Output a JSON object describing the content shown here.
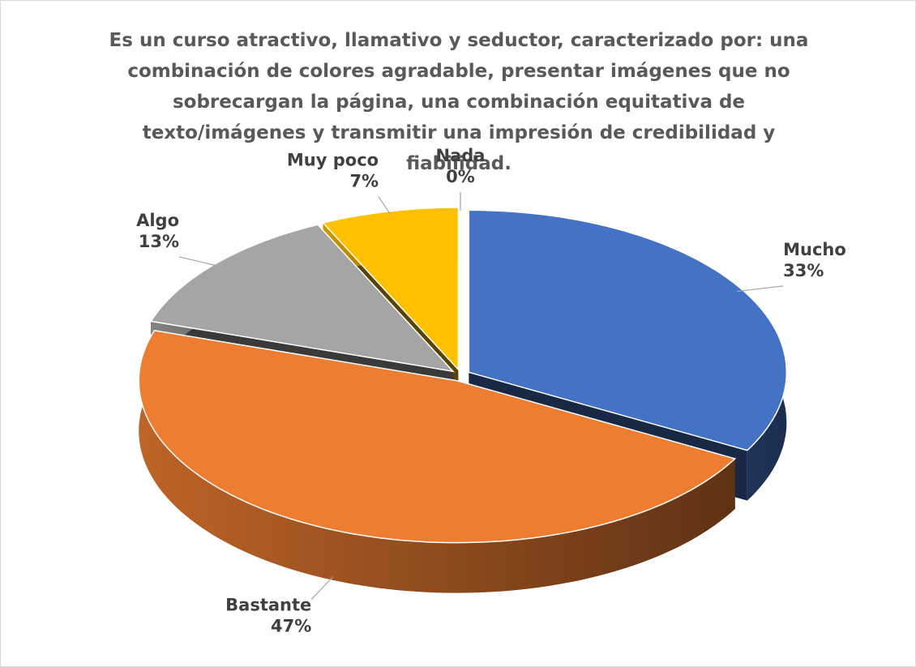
{
  "chart_data": {
    "type": "pie3d",
    "title": "Es un curso atractivo, llamativo y seductor, caracterizado por: una combinación de colores agradable, presentar imágenes que no sobrecargan la página, una combinación equitativa de texto/imágenes y transmitir una impresión de credibilidad y fiabilidad.",
    "categories": [
      "Mucho",
      "Bastante",
      "Algo",
      "Muy poco",
      "Nada"
    ],
    "values": [
      33,
      47,
      13,
      7,
      0
    ],
    "value_labels": [
      "33%",
      "47%",
      "13%",
      "7%",
      "0%"
    ],
    "colors": [
      "#4472c4",
      "#ed7d31",
      "#a5a5a5",
      "#ffc000",
      "#5b9bd5"
    ]
  }
}
